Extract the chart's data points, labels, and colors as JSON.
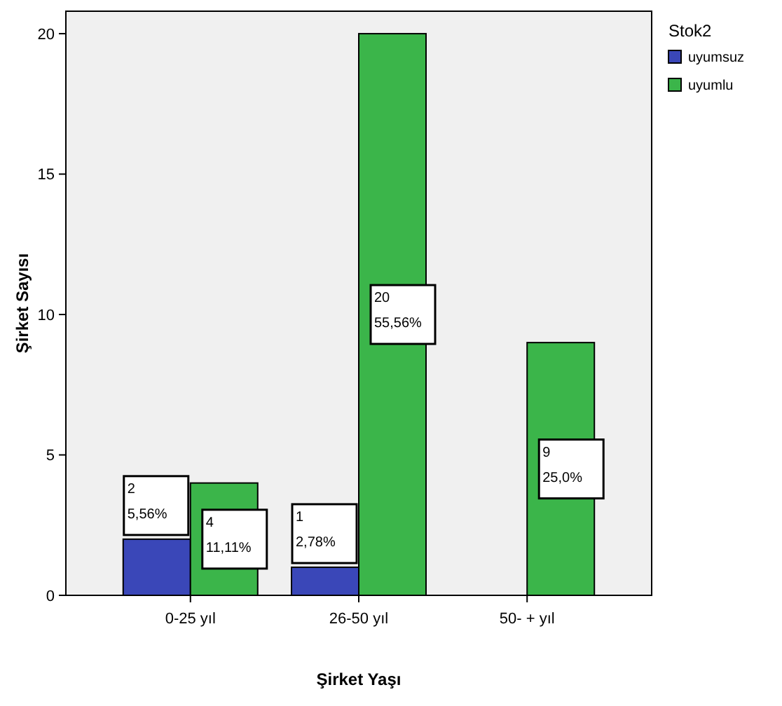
{
  "chart_data": {
    "type": "bar",
    "xlabel": "Şirket Yaşı",
    "ylabel": "Şirket Sayısı",
    "legend_title": "Stok2",
    "legend": "top right",
    "grid": false,
    "categories": [
      "0-25 yıl",
      "26-50 yıl",
      "50- + yıl"
    ],
    "ylim": [
      0,
      20.8
    ],
    "yticks": [
      0,
      5,
      10,
      15,
      20
    ],
    "series": [
      {
        "name": "uyumsuz",
        "color": "#3a47b8",
        "values": [
          2,
          1,
          null
        ],
        "value_labels": [
          "2\n5,56%",
          "1\n2,78%",
          null
        ]
      },
      {
        "name": "uyumlu",
        "color": "#3bb54a",
        "values": [
          4,
          20,
          9
        ],
        "value_labels": [
          "4\n11,11%",
          "20\n55,56%",
          "9\n25,0%"
        ]
      }
    ]
  }
}
